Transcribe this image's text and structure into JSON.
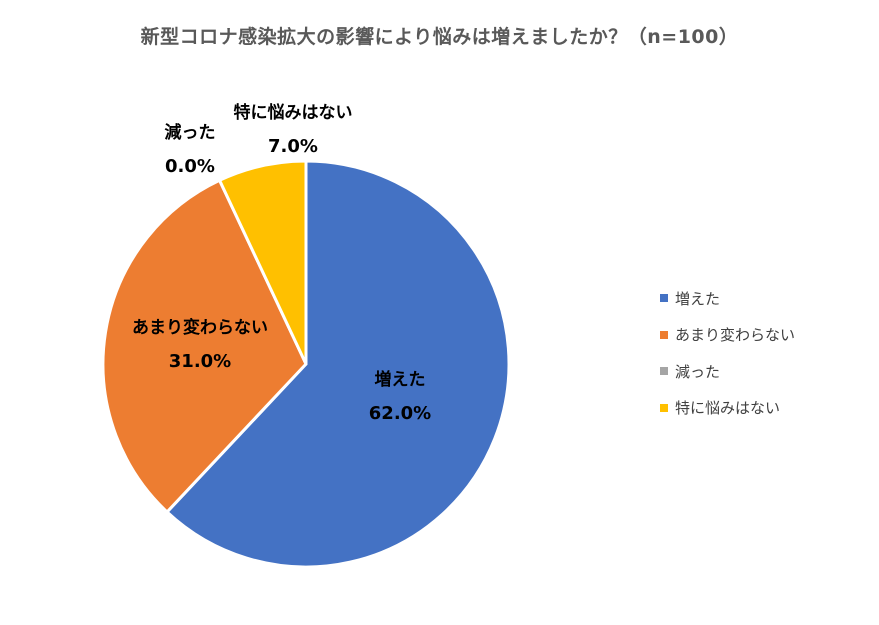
{
  "chart_data": {
    "type": "pie",
    "title": "新型コロナ感染拡大の影響により悩みは増えましたか？（n=100）",
    "slices": [
      {
        "name": "増えた",
        "value": 62.0,
        "label": "62.0%",
        "color": "#4472C4"
      },
      {
        "name": "あまり変わらない",
        "value": 31.0,
        "label": "31.0%",
        "color": "#ED7D31"
      },
      {
        "name": "減った",
        "value": 0.0,
        "label": "0.0%",
        "color": "#A5A5A5"
      },
      {
        "name": "特に悩みはない",
        "value": 7.0,
        "label": "7.0%",
        "color": "#FFC000"
      }
    ],
    "start_angle": "12 o'clock",
    "direction": "clockwise",
    "legend_position": "right"
  }
}
